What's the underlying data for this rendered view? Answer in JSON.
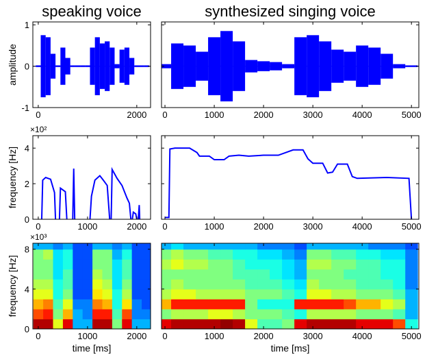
{
  "chart_data": [
    {
      "type": "waveform",
      "title": "speaking voice",
      "ylabel": "amplitude",
      "color": "#0000ff",
      "x": [
        0,
        100,
        200,
        300,
        400,
        500,
        600,
        700,
        800,
        900,
        1000,
        1100,
        1200,
        1300,
        1400,
        1500,
        1600,
        1700,
        1800,
        1900,
        2000,
        2100,
        2200
      ],
      "values": [
        0.02,
        0.75,
        0.7,
        0.3,
        0.02,
        0.45,
        0.2,
        0.02,
        0.02,
        0.02,
        0.02,
        0.45,
        0.7,
        0.55,
        0.6,
        0.45,
        0.05,
        0.4,
        0.45,
        0.2,
        0.02,
        0.02,
        0.02
      ],
      "xlim": [
        -110,
        2280
      ],
      "ylim": [
        -1,
        1.07
      ],
      "xticks": [
        0,
        2000
      ],
      "yticks": [
        -1,
        0,
        1
      ],
      "show_yticklabels": true
    },
    {
      "type": "waveform",
      "title": "synthesized singing voice",
      "color": "#0000ff",
      "x": [
        0,
        250,
        500,
        750,
        1000,
        1250,
        1500,
        1750,
        2000,
        2250,
        2500,
        2750,
        3000,
        3250,
        3500,
        3750,
        4000,
        4250,
        4500,
        4750,
        5000
      ],
      "values": [
        0.05,
        0.55,
        0.5,
        0.35,
        0.7,
        0.85,
        0.6,
        0.15,
        0.12,
        0.1,
        0.05,
        0.7,
        0.75,
        0.6,
        0.4,
        0.35,
        0.5,
        0.45,
        0.3,
        0.05,
        0.02
      ],
      "xlim": [
        -70,
        5150
      ],
      "ylim": [
        -1,
        1.07
      ],
      "xticks": [
        0,
        1000,
        2000,
        3000,
        4000,
        5000
      ],
      "yticks": [
        -1,
        0,
        1
      ],
      "show_yticklabels": false
    },
    {
      "type": "line",
      "ylabel": "frequency [Hz]",
      "y_multiplier": "×10²",
      "color": "#0000ff",
      "x": [
        70,
        90,
        150,
        250,
        330,
        350,
        380,
        430,
        450,
        550,
        580,
        600,
        700,
        720,
        740,
        800,
        1050,
        1080,
        1150,
        1250,
        1320,
        1400,
        1450,
        1470,
        1480,
        1500,
        1600,
        1700,
        1800,
        1850,
        1880,
        1900,
        1910,
        1930,
        1980,
        2000,
        2020,
        2030,
        2050,
        2060
      ],
      "values": [
        0,
        2.2,
        2.35,
        2.25,
        1.5,
        0,
        null,
        0,
        1.75,
        1.55,
        0,
        null,
        0,
        2.85,
        0,
        null,
        0,
        1.3,
        2.2,
        2.45,
        2.2,
        1.9,
        0,
        null,
        0,
        2.8,
        2.3,
        1.9,
        1.2,
        0.9,
        0,
        null,
        0,
        0.4,
        0.3,
        0,
        null,
        0,
        0.8,
        0
      ],
      "xlim": [
        -110,
        2280
      ],
      "ylim": [
        0,
        4.7
      ],
      "xticks": [
        0,
        1000,
        2000
      ],
      "yticks": [
        0,
        2,
        4
      ],
      "show_yticklabels": true
    },
    {
      "type": "line",
      "color": "#0000ff",
      "x": [
        0,
        80,
        100,
        200,
        500,
        650,
        700,
        900,
        1000,
        1200,
        1300,
        1500,
        1700,
        2000,
        2300,
        2600,
        2800,
        2900,
        3000,
        3200,
        3300,
        3400,
        3500,
        3700,
        3800,
        3900,
        4500,
        4950,
        5000
      ],
      "values": [
        0.1,
        0.1,
        3.95,
        4.0,
        4.0,
        3.75,
        3.55,
        3.55,
        3.35,
        3.35,
        3.55,
        3.6,
        3.55,
        3.6,
        3.6,
        3.9,
        3.9,
        3.4,
        3.15,
        3.15,
        2.6,
        2.65,
        3.1,
        3.1,
        2.4,
        2.3,
        2.35,
        2.3,
        0
      ],
      "xlim": [
        -70,
        5150
      ],
      "ylim": [
        0,
        4.7
      ],
      "xticks": [
        0,
        1000,
        2000,
        3000,
        4000,
        5000
      ],
      "yticks": [
        0,
        2,
        4
      ],
      "show_yticklabels": false
    },
    {
      "type": "heatmap",
      "ylabel": "frequency [Hz]",
      "xlabel": "time [ms]",
      "y_multiplier": "×10³",
      "colormap": "jet",
      "x": [
        0,
        200,
        400,
        600,
        800,
        1000,
        1200,
        1400,
        1600,
        1800,
        2000,
        2200
      ],
      "y": [
        0.5,
        1.5,
        2.5,
        3.5,
        4.5,
        5.5,
        6.5,
        7.5,
        8.5
      ],
      "z": [
        [
          0.95,
          0.95,
          0.6,
          0.9,
          0.3,
          0.3,
          0.95,
          0.95,
          0.5,
          0.9,
          0.3,
          0.3
        ],
        [
          0.8,
          0.85,
          0.5,
          0.7,
          0.3,
          0.25,
          0.85,
          0.85,
          0.45,
          0.8,
          0.25,
          0.25
        ],
        [
          0.7,
          0.75,
          0.45,
          0.6,
          0.25,
          0.25,
          0.75,
          0.7,
          0.4,
          0.65,
          0.25,
          0.2
        ],
        [
          0.6,
          0.6,
          0.4,
          0.5,
          0.2,
          0.2,
          0.65,
          0.6,
          0.4,
          0.55,
          0.2,
          0.2
        ],
        [
          0.55,
          0.55,
          0.4,
          0.45,
          0.2,
          0.2,
          0.6,
          0.55,
          0.35,
          0.5,
          0.2,
          0.2
        ],
        [
          0.5,
          0.5,
          0.35,
          0.45,
          0.2,
          0.2,
          0.55,
          0.5,
          0.35,
          0.45,
          0.2,
          0.2
        ],
        [
          0.5,
          0.5,
          0.35,
          0.4,
          0.2,
          0.2,
          0.5,
          0.5,
          0.35,
          0.45,
          0.2,
          0.2
        ],
        [
          0.5,
          0.55,
          0.35,
          0.4,
          0.2,
          0.2,
          0.5,
          0.5,
          0.3,
          0.4,
          0.2,
          0.2
        ],
        [
          0.3,
          0.3,
          0.25,
          0.3,
          0.2,
          0.2,
          0.3,
          0.3,
          0.25,
          0.3,
          0.2,
          0.2
        ]
      ],
      "xlim": [
        -110,
        2280
      ],
      "ylim": [
        0,
        8.6
      ],
      "xticks": [
        0,
        1000,
        2000
      ],
      "yticks": [
        0,
        4,
        8
      ],
      "show_yticklabels": true
    },
    {
      "type": "heatmap",
      "xlabel": "time [ms]",
      "colormap": "jet",
      "x": [
        0,
        250,
        500,
        750,
        1000,
        1250,
        1500,
        1750,
        2000,
        2250,
        2500,
        2750,
        3000,
        3250,
        3500,
        3750,
        4000,
        4250,
        4500,
        4750,
        5000
      ],
      "y": [
        0.5,
        1.5,
        2.5,
        3.5,
        4.5,
        5.5,
        6.5,
        7.5,
        8.5
      ],
      "z": [
        [
          0.9,
          0.95,
          0.95,
          0.95,
          0.95,
          0.98,
          0.95,
          0.6,
          0.45,
          0.45,
          0.5,
          0.9,
          0.95,
          0.95,
          0.95,
          0.95,
          0.9,
          0.9,
          0.9,
          0.8,
          0.4
        ],
        [
          0.5,
          0.55,
          0.55,
          0.55,
          0.6,
          0.6,
          0.55,
          0.5,
          0.5,
          0.5,
          0.45,
          0.4,
          0.55,
          0.55,
          0.55,
          0.55,
          0.5,
          0.5,
          0.5,
          0.45,
          0.3
        ],
        [
          0.7,
          0.85,
          0.85,
          0.85,
          0.85,
          0.85,
          0.85,
          0.5,
          0.4,
          0.4,
          0.4,
          0.85,
          0.85,
          0.85,
          0.85,
          0.8,
          0.7,
          0.7,
          0.6,
          0.55,
          0.3
        ],
        [
          0.55,
          0.6,
          0.6,
          0.55,
          0.55,
          0.55,
          0.55,
          0.5,
          0.5,
          0.5,
          0.45,
          0.4,
          0.6,
          0.6,
          0.55,
          0.55,
          0.5,
          0.5,
          0.5,
          0.45,
          0.3
        ],
        [
          0.5,
          0.55,
          0.5,
          0.5,
          0.5,
          0.5,
          0.5,
          0.45,
          0.45,
          0.45,
          0.4,
          0.35,
          0.55,
          0.5,
          0.5,
          0.5,
          0.45,
          0.45,
          0.45,
          0.4,
          0.25
        ],
        [
          0.5,
          0.5,
          0.5,
          0.5,
          0.5,
          0.5,
          0.45,
          0.45,
          0.45,
          0.4,
          0.35,
          0.3,
          0.5,
          0.5,
          0.5,
          0.45,
          0.45,
          0.45,
          0.4,
          0.4,
          0.25
        ],
        [
          0.55,
          0.6,
          0.55,
          0.55,
          0.5,
          0.5,
          0.45,
          0.4,
          0.4,
          0.4,
          0.35,
          0.3,
          0.55,
          0.55,
          0.5,
          0.5,
          0.45,
          0.45,
          0.4,
          0.4,
          0.25
        ],
        [
          0.5,
          0.55,
          0.5,
          0.5,
          0.45,
          0.45,
          0.4,
          0.4,
          0.35,
          0.35,
          0.3,
          0.25,
          0.5,
          0.5,
          0.45,
          0.45,
          0.4,
          0.4,
          0.35,
          0.35,
          0.25
        ],
        [
          0.3,
          0.35,
          0.3,
          0.3,
          0.3,
          0.3,
          0.3,
          0.3,
          0.25,
          0.25,
          0.25,
          0.2,
          0.3,
          0.3,
          0.3,
          0.3,
          0.3,
          0.25,
          0.25,
          0.25,
          0.2
        ]
      ],
      "xlim": [
        -70,
        5150
      ],
      "ylim": [
        0,
        8.6
      ],
      "xticks": [
        0,
        1000,
        2000,
        3000,
        4000,
        5000
      ],
      "yticks": [
        0,
        4,
        8
      ],
      "show_yticklabels": false
    }
  ]
}
